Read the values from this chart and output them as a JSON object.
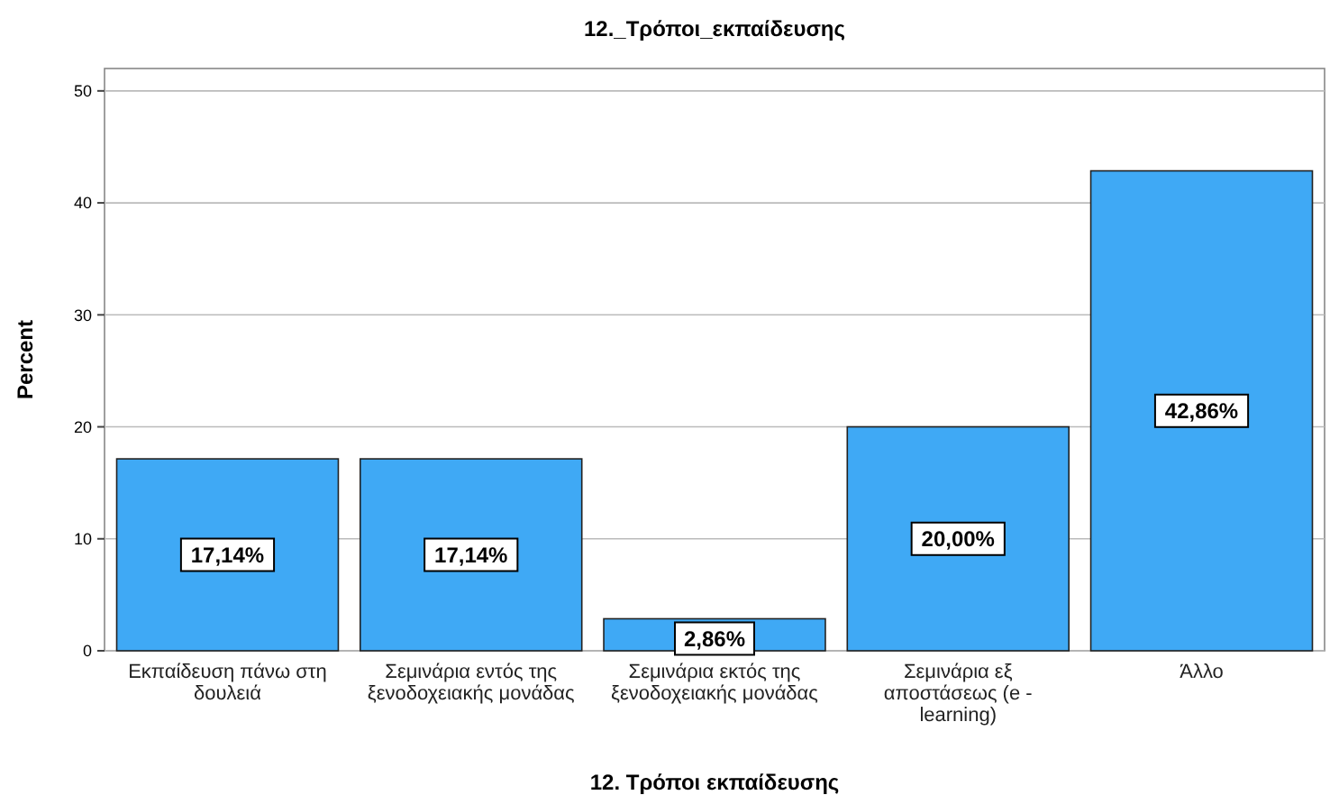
{
  "chart_data": {
    "type": "bar",
    "title": "12._Τρόποι_εκπαίδευσης",
    "xlabel": "12. Τρόποι εκπαίδευσης",
    "ylabel": "Percent",
    "categories": [
      "Εκπαίδευση πάνω στη δουλειά",
      "Σεμινάρια εντός της ξενοδοχειακής μονάδας",
      "Σεμινάρια εκτός της ξενοδοχειακής μονάδας",
      "Σεμινάρια εξ αποστάσεως (e - learning)",
      "Άλλο"
    ],
    "values": [
      17.14,
      17.14,
      2.86,
      20.0,
      42.86
    ],
    "value_labels": [
      "17,14%",
      "17,14%",
      "2,86%",
      "20,00%",
      "42,86%"
    ],
    "color": "#3fa9f5",
    "ylim": [
      0,
      52
    ],
    "yticks": [
      0,
      10,
      20,
      30,
      40,
      50
    ],
    "grid": "y"
  }
}
